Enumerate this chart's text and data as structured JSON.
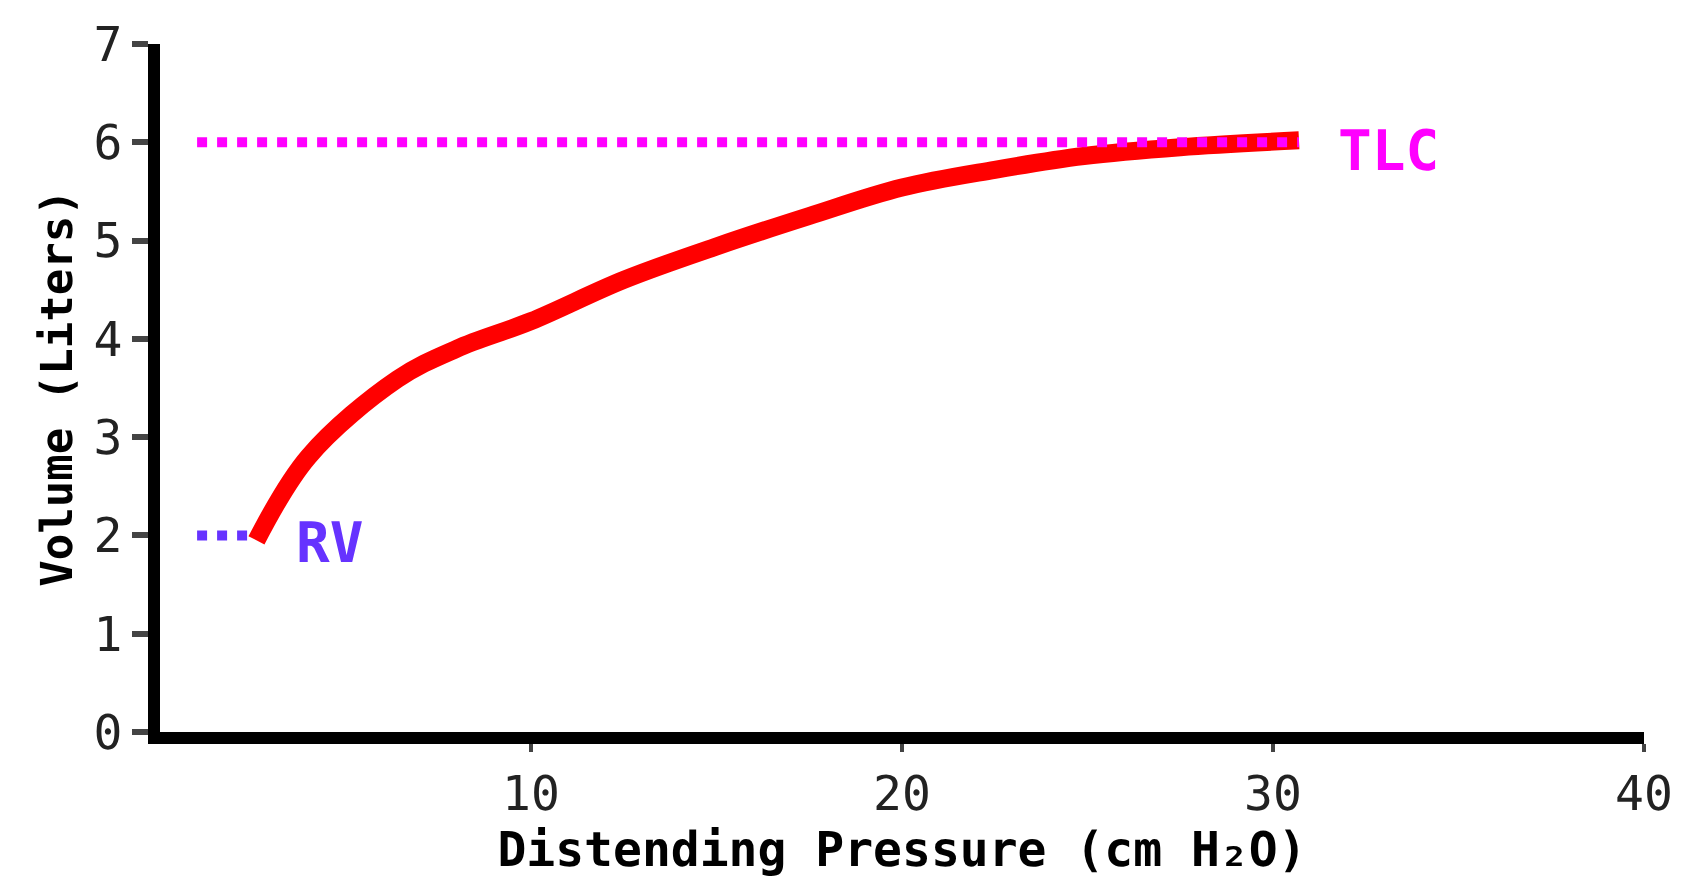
{
  "chart_data": {
    "type": "line",
    "xlabel": "Distending Pressure (cm H₂O)",
    "ylabel": "Volume (Liters)",
    "xlim": [
      0,
      40
    ],
    "ylim": [
      0,
      7
    ],
    "xticks": [
      10,
      20,
      30,
      40
    ],
    "yticks": [
      0,
      1,
      2,
      3,
      4,
      5,
      6,
      7
    ],
    "grid": false,
    "marker": "none",
    "series": [
      {
        "color": "#ff0000",
        "line_style": "solid",
        "x": [
          2.6,
          4,
          6.4,
          8,
          10,
          12.5,
          15,
          17.5,
          20,
          22.5,
          24.9,
          27.5,
          30.7
        ],
        "values": [
          1.95,
          2.8,
          3.59,
          3.9,
          4.18,
          4.6,
          4.94,
          5.25,
          5.54,
          5.72,
          5.86,
          5.95,
          6.02
        ]
      },
      {
        "color": "#ff00ff",
        "line_style": "dotted",
        "x": [
          1,
          30.7
        ],
        "values": [
          6,
          6
        ]
      },
      {
        "color": "#6633ff",
        "line_style": "dotted",
        "x": [
          1,
          2.6
        ],
        "values": [
          2,
          2
        ]
      }
    ],
    "annotations": [
      {
        "text": "TLC",
        "x": 30.7,
        "y": 6
      },
      {
        "text": "RV",
        "x": 2.6,
        "y": 2
      }
    ]
  }
}
